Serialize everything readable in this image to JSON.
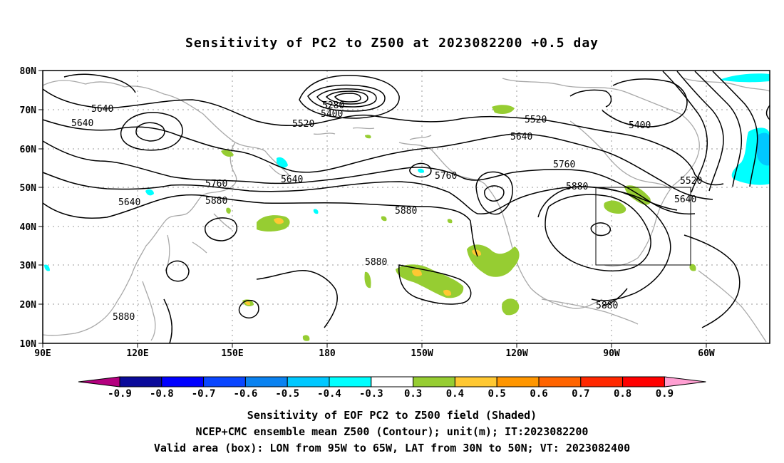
{
  "title": "Sensitivity of PC2 to Z500 at 2023082200 +0.5 day",
  "lat_labels": [
    "80N",
    "70N",
    "60N",
    "50N",
    "40N",
    "30N",
    "20N",
    "10N"
  ],
  "lon_labels": [
    "90E",
    "120E",
    "150E",
    "180",
    "150W",
    "120W",
    "90W",
    "60W"
  ],
  "colorbar": {
    "labels": [
      "-0.9",
      "-0.8",
      "-0.7",
      "-0.6",
      "-0.5",
      "-0.4",
      "-0.3",
      "0.3",
      "0.4",
      "0.5",
      "0.6",
      "0.7",
      "0.8",
      "0.9"
    ],
    "colors": [
      "#b4007f",
      "#0a0a9a",
      "#0000ff",
      "#0a46ff",
      "#0a82f0",
      "#00c8ff",
      "#00ffff",
      "#ffffff",
      "#96cd32",
      "#ffc832",
      "#ff9600",
      "#ff6400",
      "#ff2800",
      "#ff0000",
      "#ff9fd2"
    ]
  },
  "contour_labels": [
    {
      "text": "5640"
    },
    {
      "text": "5640"
    },
    {
      "text": "5280"
    },
    {
      "text": "5400"
    },
    {
      "text": "5520"
    },
    {
      "text": "5520"
    },
    {
      "text": "5400"
    },
    {
      "text": "5640"
    },
    {
      "text": "5640"
    },
    {
      "text": "5760"
    },
    {
      "text": "5760"
    },
    {
      "text": "5880"
    },
    {
      "text": "5520"
    },
    {
      "text": "5640"
    },
    {
      "text": "5640"
    },
    {
      "text": "5760"
    },
    {
      "text": "5880"
    },
    {
      "text": "5880"
    },
    {
      "text": "5880"
    },
    {
      "text": "5880"
    },
    {
      "text": "5880"
    }
  ],
  "valid_box": {
    "lon_west": "95W",
    "lon_east": "65W",
    "lat_south": "30N",
    "lat_north": "50N"
  },
  "caption": {
    "line1": "Sensitivity of EOF PC2 to Z500 field (Shaded)",
    "line2": "NCEP+CMC ensemble mean Z500 (Contour); unit(m); IT:2023082200",
    "line3": "Valid area (box): LON from 95W to 65W, LAT from 30N to 50N; VT: 2023082400"
  }
}
